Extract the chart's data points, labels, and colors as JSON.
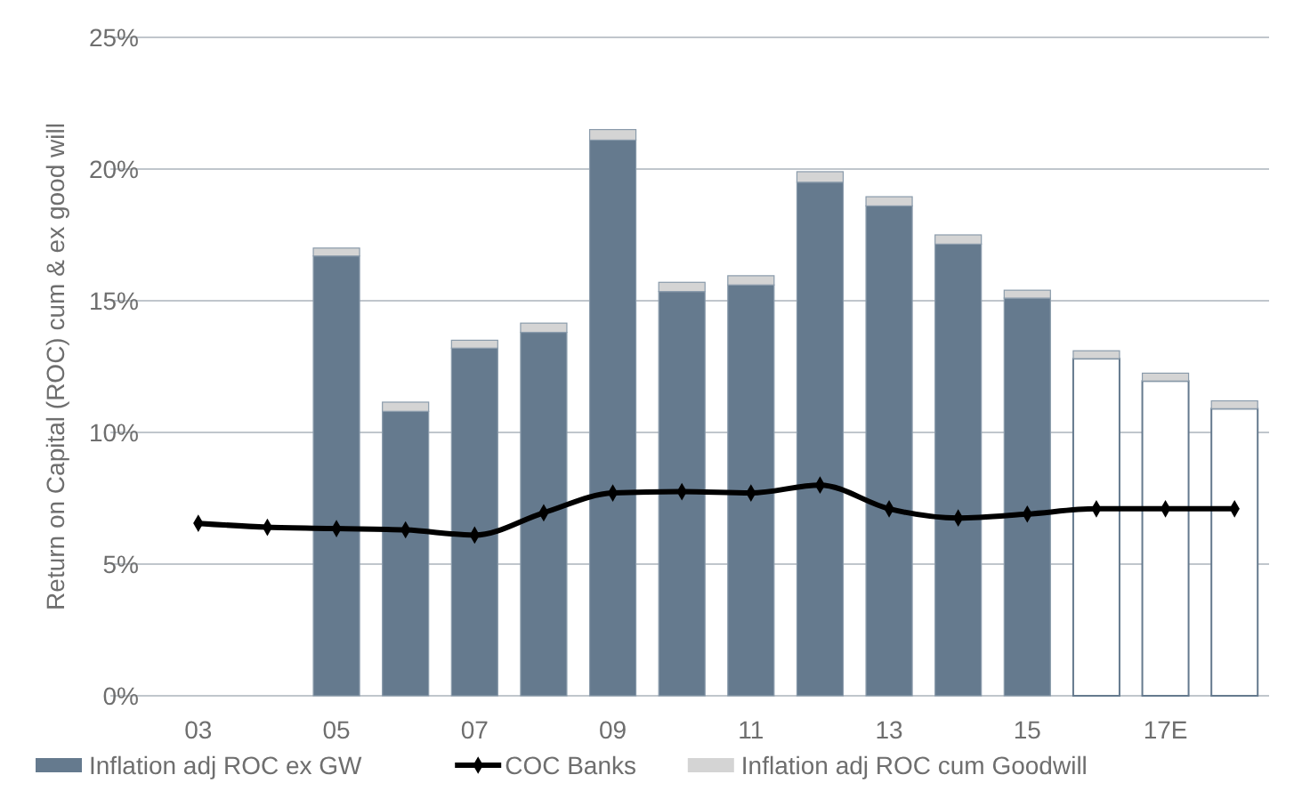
{
  "chart_data": {
    "type": "bar",
    "ylabel": "Return on Capital (ROC) cum & ex good will",
    "categories": [
      "03",
      null,
      "05",
      null,
      "07",
      null,
      "09",
      null,
      "11",
      null,
      "13",
      null,
      "15",
      null,
      "17E",
      null
    ],
    "stacked": true,
    "grid": "y",
    "legend": "bottom",
    "ylim": [
      0,
      25
    ],
    "yticks": [
      {
        "value": 0,
        "label": "0%"
      },
      {
        "value": 5,
        "label": "5%"
      },
      {
        "value": 10,
        "label": "10%"
      },
      {
        "value": 15,
        "label": "15%"
      },
      {
        "value": 20,
        "label": "20%"
      },
      {
        "value": 25,
        "label": "25%"
      }
    ],
    "series": [
      {
        "name": "Inflation adj ROC ex GW",
        "color": "#657a8e",
        "colors": [
          "#657a8e",
          "#657a8e",
          "#657a8e",
          "#657a8e",
          "#657a8e",
          "#657a8e",
          "#657a8e",
          "#657a8e",
          "#657a8e",
          "#657a8e",
          "#657a8e",
          "#657a8e",
          "#657a8e",
          "#ffffff",
          "#ffffff",
          "#ffffff"
        ],
        "values": [
          null,
          null,
          16.7,
          10.8,
          13.2,
          13.8,
          21.1,
          15.35,
          15.6,
          19.5,
          18.6,
          17.15,
          15.1,
          12.8,
          11.95,
          10.9
        ]
      },
      {
        "name": "COC Banks",
        "type": "line",
        "color": "#000000",
        "marker": "diamond",
        "line_style": "solid",
        "values": [
          6.55,
          6.4,
          6.35,
          6.3,
          6.1,
          6.95,
          7.7,
          7.75,
          7.7,
          8.0,
          7.1,
          6.75,
          6.9,
          7.1,
          7.1,
          7.1
        ]
      },
      {
        "name": "Inflation adj ROC cum Goodwill",
        "color": "#d4d4d4",
        "values": [
          null,
          null,
          0.3,
          0.35,
          0.3,
          0.35,
          0.4,
          0.35,
          0.35,
          0.4,
          0.35,
          0.35,
          0.3,
          0.3,
          0.3,
          0.3
        ]
      }
    ]
  }
}
